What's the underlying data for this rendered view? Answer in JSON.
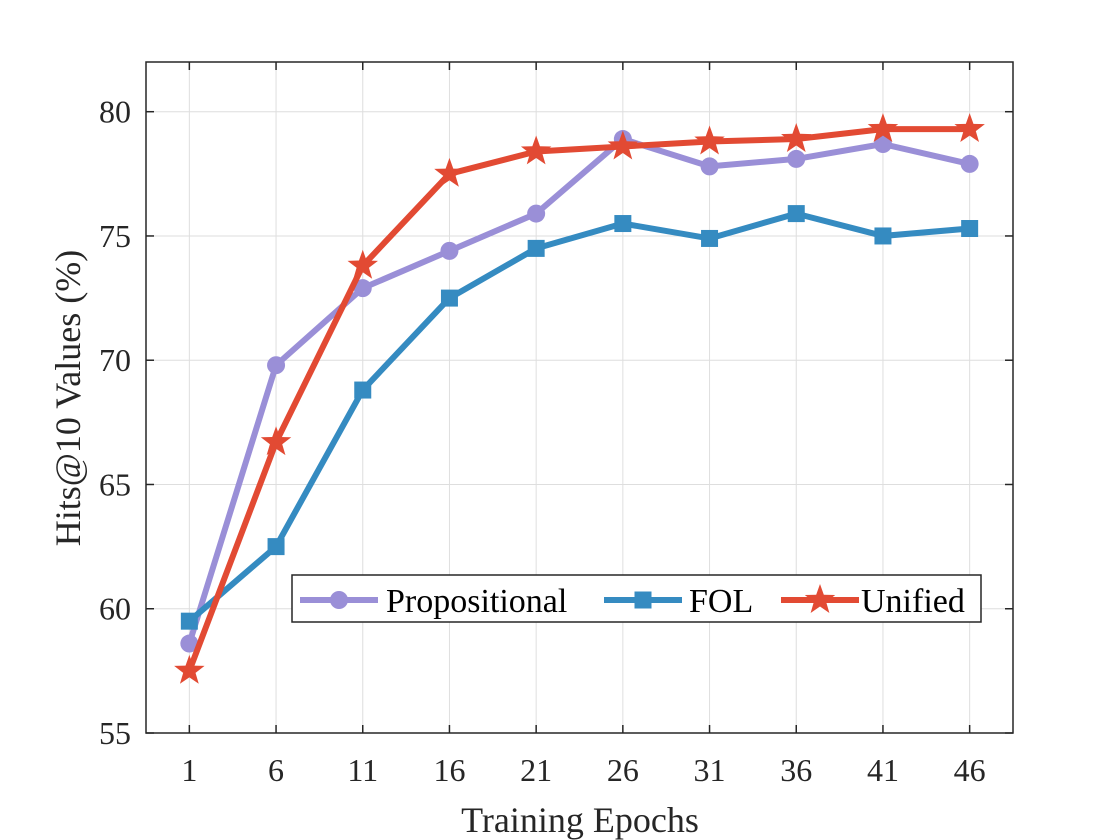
{
  "chart_data": {
    "type": "line",
    "title": "",
    "xlabel": "Training Epochs",
    "ylabel": "Hits@10 Values (%)",
    "x": [
      1,
      6,
      11,
      16,
      21,
      26,
      31,
      36,
      41,
      46
    ],
    "x_tick_labels": [
      "1",
      "6",
      "11",
      "16",
      "21",
      "26",
      "31",
      "36",
      "41",
      "46"
    ],
    "y_ticks": [
      55,
      60,
      65,
      70,
      75,
      80
    ],
    "y_tick_labels": [
      "55",
      "60",
      "65",
      "70",
      "75",
      "80"
    ],
    "xlim": [
      -1.5,
      48.5
    ],
    "ylim": [
      55,
      82
    ],
    "grid": true,
    "legend_position": "lower-right",
    "legend_orientation": "horizontal",
    "series": [
      {
        "name": "Propositional",
        "color": "#9A8FD7",
        "marker": "circle",
        "values": [
          58.6,
          69.8,
          72.9,
          74.4,
          75.9,
          78.9,
          77.8,
          78.1,
          78.7,
          77.9
        ]
      },
      {
        "name": "FOL",
        "color": "#358BC1",
        "marker": "square",
        "values": [
          59.5,
          62.5,
          68.8,
          72.5,
          74.5,
          75.5,
          74.9,
          75.9,
          75.0,
          75.3
        ]
      },
      {
        "name": "Unified",
        "color": "#E24A33",
        "marker": "star",
        "values": [
          57.5,
          66.7,
          73.8,
          77.5,
          78.4,
          78.6,
          78.8,
          78.9,
          79.3,
          79.3
        ]
      }
    ]
  }
}
